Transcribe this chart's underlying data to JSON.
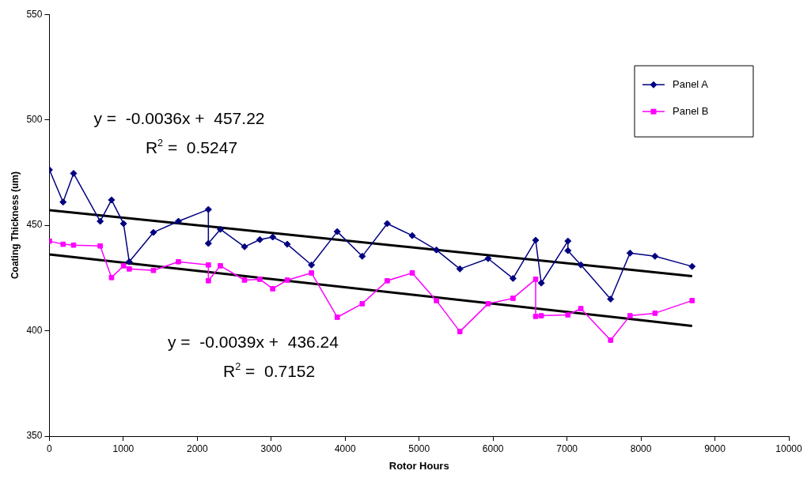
{
  "chart_data": {
    "type": "line",
    "xlabel": "Rotor Hours",
    "ylabel": "Coating Thickness (um)",
    "xlim": [
      0,
      10000
    ],
    "xticks": [
      0,
      1000,
      2000,
      3000,
      4000,
      5000,
      6000,
      7000,
      8000,
      9000,
      10000
    ],
    "ylim": [
      350,
      550
    ],
    "yticks": [
      350,
      400,
      450,
      500,
      550
    ],
    "grid": false,
    "legend": "top right",
    "series": [
      {
        "name": "Panel A",
        "color": "#000080",
        "marker": "diamond",
        "x": [
          0,
          185,
          327,
          687,
          840,
          1003,
          1080,
          1407,
          1745,
          2150,
          2150,
          2312,
          2639,
          2846,
          3020,
          3217,
          3544,
          3893,
          4231,
          4569,
          4907,
          5234,
          5551,
          5933,
          6270,
          6576,
          6652,
          7012,
          7012,
          7187,
          7590,
          7852,
          8190,
          8692
        ],
        "values": [
          476.3,
          461,
          474.6,
          451.9,
          462,
          450.8,
          432.7,
          446.6,
          451.9,
          457.5,
          441.4,
          448.1,
          439.8,
          443.2,
          444.4,
          441,
          431.2,
          447,
          435.3,
          450.8,
          445.1,
          438.3,
          429.3,
          434.2,
          424.8,
          442.9,
          422.6,
          442.5,
          438,
          431.2,
          415,
          436.8,
          435.3,
          430.5
        ]
      },
      {
        "name": "Panel B",
        "color": "#ff00ff",
        "marker": "square",
        "x": [
          0,
          185,
          327,
          687,
          840,
          1003,
          1080,
          1407,
          1745,
          2150,
          2150,
          2312,
          2639,
          2846,
          3020,
          3217,
          3544,
          3893,
          4231,
          4569,
          4907,
          5234,
          5551,
          5933,
          6270,
          6576,
          6576,
          6652,
          7012,
          7187,
          7590,
          7852,
          8190,
          8692
        ],
        "values": [
          442.5,
          441,
          440.6,
          440.2,
          425.2,
          430.8,
          429.3,
          428.6,
          432.7,
          431.2,
          423.7,
          430.8,
          424,
          424.4,
          419.9,
          424,
          427.4,
          406.4,
          412.8,
          423.7,
          427.4,
          414.3,
          399.6,
          412.8,
          415.4,
          424.4,
          406.8,
          407.1,
          407.5,
          410.5,
          395.5,
          407.1,
          408.3,
          414.3
        ]
      },
      {
        "type": "line",
        "color": "#000000",
        "marker": "none",
        "x": [
          0,
          8692
        ],
        "values": [
          457.2,
          425.9
        ]
      },
      {
        "type": "line",
        "color": "#000000",
        "marker": "none",
        "x": [
          0,
          8692
        ],
        "values": [
          436.2,
          402.3
        ]
      }
    ],
    "annotations": [
      "y =  -0.0036x +  457.22",
      "R$^{2}$ =  0.5247",
      "y =  -0.0039x +  436.24",
      "R$^{2}$ =  0.7152"
    ]
  }
}
